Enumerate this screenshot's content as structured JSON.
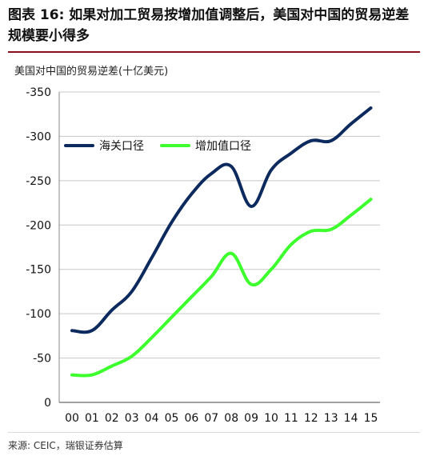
{
  "header": {
    "title": "图表 16: 如果对加工贸易按增加值调整后，美国对中国的贸易逆差规模要小得多",
    "source": "来源: CEIC，瑞银证券估算"
  },
  "chart_data": {
    "type": "line",
    "title": "",
    "ylabel": "美国对中国的贸易逆差(十亿美元)",
    "xlabel": "",
    "categories": [
      "00",
      "01",
      "02",
      "03",
      "04",
      "05",
      "06",
      "07",
      "08",
      "09",
      "10",
      "11",
      "12",
      "13",
      "14",
      "15"
    ],
    "y_ticks": [
      "-350",
      "-300",
      "-250",
      "-200",
      "-150",
      "-100",
      "-50",
      "0"
    ],
    "ylim": [
      0,
      -350
    ],
    "y_reversed": true,
    "grid": true,
    "legend_position": "top-left",
    "series": [
      {
        "name": "海关口径",
        "color": "#0d2a5e",
        "values": [
          -81,
          -81,
          -104,
          -125,
          -163,
          -203,
          -235,
          -258,
          -266,
          -221,
          -262,
          -281,
          -295,
          -295,
          -314,
          -332
        ]
      },
      {
        "name": "增加值口径",
        "color": "#3dff2e",
        "values": [
          -31,
          -31,
          -41,
          -52,
          -73,
          -96,
          -119,
          -142,
          -168,
          -133,
          -150,
          -178,
          -193,
          -195,
          -211,
          -229
        ]
      }
    ]
  }
}
